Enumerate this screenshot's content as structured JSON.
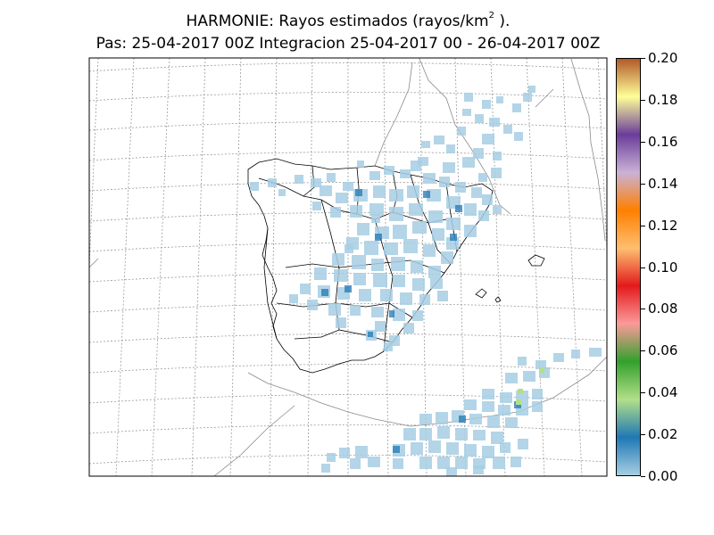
{
  "title": {
    "line1_prefix": "HARMONIE: Rayos estimados  (rayos/km",
    "line1_sup": "2",
    "line1_suffix": " ).",
    "line2": "Pas: 25-04-2017 00Z Integracion 25-04-2017 00 - 26-04-2017 00Z"
  },
  "colorbar": {
    "ticks": [
      "0.00",
      "0.02",
      "0.04",
      "0.06",
      "0.08",
      "0.10",
      "0.12",
      "0.14",
      "0.16",
      "0.18",
      "0.20"
    ],
    "range": [
      0.0,
      0.2
    ],
    "colors": [
      "#a6cee3",
      "#1f78b4",
      "#b2df8a",
      "#33a02c",
      "#fb9a99",
      "#e31a1c",
      "#fdbf6f",
      "#ff7f00",
      "#cab2d6",
      "#6a3d9a",
      "#ffff99",
      "#b15928"
    ]
  },
  "map": {
    "region": "Iberian Peninsula and Balearic Islands",
    "graticule": "dotted",
    "colors": {
      "light": "#a6cee3",
      "medium": "#1f78b4",
      "green": "#b2df8a",
      "border": "#000000",
      "coast": "#999999"
    }
  }
}
